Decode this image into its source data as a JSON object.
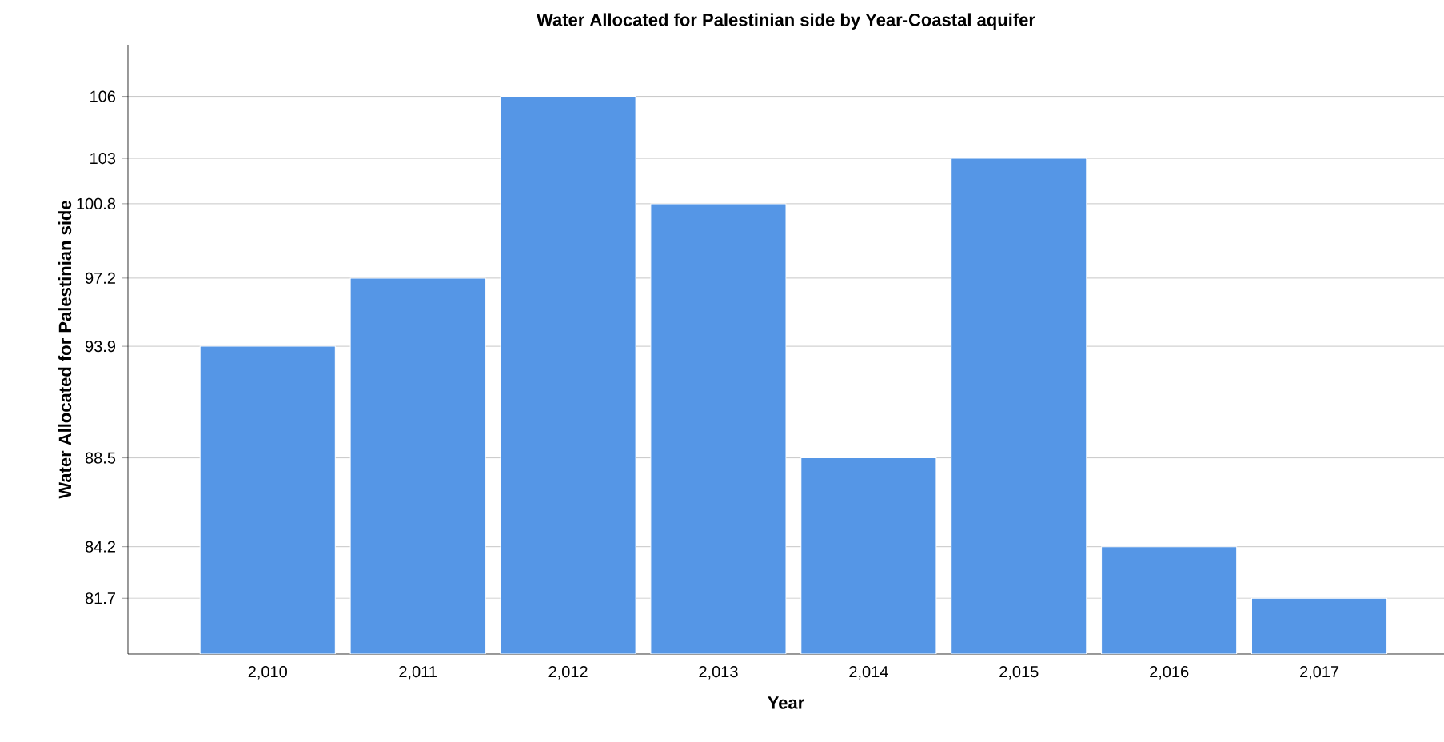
{
  "chart_data": {
    "type": "bar",
    "title": "Water Allocated for Palestinian side  by Year-Coastal aquifer",
    "xlabel": "Year",
    "ylabel": "Water Allocated for Palestinian side",
    "categories": [
      "2,010",
      "2,011",
      "2,012",
      "2,013",
      "2,014",
      "2,015",
      "2,016",
      "2,017"
    ],
    "values": [
      93.9,
      97.2,
      106,
      100.8,
      88.5,
      103,
      84.2,
      81.7
    ],
    "color": "#5596e6",
    "ylim": [
      79,
      108.5
    ],
    "yticks": [
      81.7,
      84.2,
      88.5,
      93.9,
      97.2,
      100.8,
      103,
      106
    ],
    "grid": "y"
  }
}
